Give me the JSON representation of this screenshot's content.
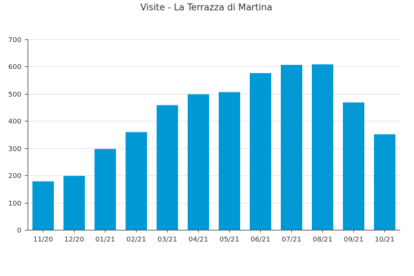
{
  "colors": {
    "bar": "#0099d6",
    "grid": "#e6e6e6",
    "axis": "#555555",
    "text": "#333333"
  },
  "chart_data": {
    "type": "bar",
    "title": "Visite - La Terrazza di Martina",
    "xlabel": "",
    "ylabel": "",
    "categories": [
      "11/20",
      "12/20",
      "01/21",
      "02/21",
      "03/21",
      "04/21",
      "05/21",
      "06/21",
      "07/21",
      "08/21",
      "09/21",
      "10/21"
    ],
    "values": [
      178,
      198,
      297,
      359,
      458,
      498,
      506,
      576,
      606,
      608,
      468,
      351
    ],
    "ylim": [
      0,
      700
    ],
    "yticks": [
      0,
      100,
      200,
      300,
      400,
      500,
      600,
      700
    ],
    "grid": true,
    "legend": "none"
  }
}
